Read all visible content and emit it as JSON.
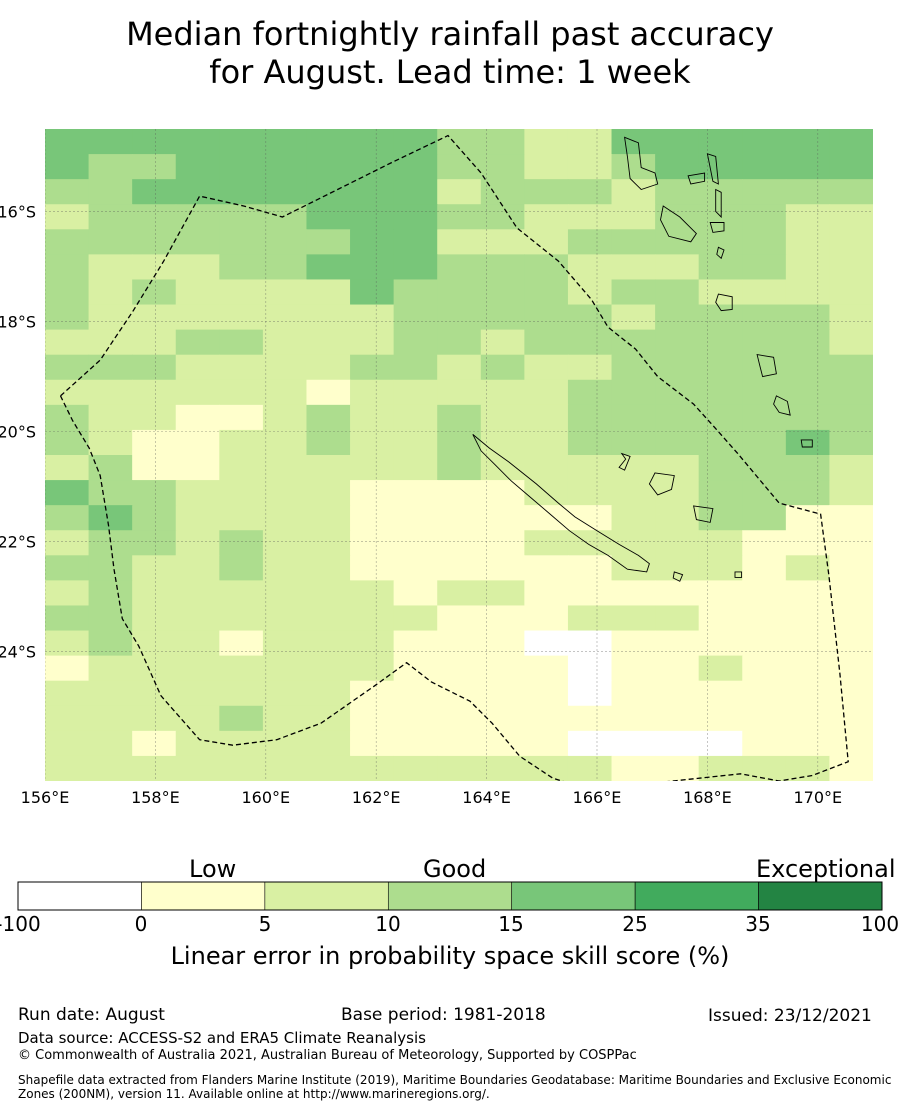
{
  "title": {
    "line1": "Median fortnightly rainfall past accuracy",
    "line2": "for August. Lead time: 1 week"
  },
  "map": {
    "lon_ticks": [
      "156°E",
      "158°E",
      "160°E",
      "162°E",
      "164°E",
      "166°E",
      "168°E",
      "170°E"
    ],
    "lat_ticks": [
      "16°S",
      "18°S",
      "20°S",
      "22°S",
      "24°S"
    ],
    "extent": {
      "lon_min": 156,
      "lon_max": 171.0,
      "lat_top": -14.5,
      "lat_bottom": -26.35
    },
    "cell_size_deg": 0.833,
    "skill_classes": [
      {
        "code": 0,
        "range": "-100 to 0",
        "color": "#ffffff"
      },
      {
        "code": 1,
        "range": "0 to 5",
        "color": "#ffffcc"
      },
      {
        "code": 2,
        "range": "5 to 10",
        "color": "#d9f0a3"
      },
      {
        "code": 3,
        "range": "10 to 15",
        "color": "#addd8e"
      },
      {
        "code": 4,
        "range": "15 to 25",
        "color": "#78c679"
      },
      {
        "code": 5,
        "range": "25 to 35",
        "color": "#41ab5d"
      },
      {
        "code": 6,
        "range": "35 to 100",
        "color": "#238443"
      }
    ],
    "grid_rows": [
      "4444444443322444444",
      "4334444443322344444",
      "3344444442333233333",
      "2333334443322233322",
      "3333333442223333322",
      "3222334443332223322",
      "3232222433332332222",
      "3222222233333233332",
      "2223322233233333332",
      "3332222332322333333",
      "2222221222223333333",
      "3221123223223333333",
      "3211223223223333343",
      "2311222223222223332",
      "4332222111122223332",
      "3432222111111223311",
      "2332322111122222111",
      "3322322111111222121",
      "2322222212211111111",
      "3322222221112221111",
      "2322122211100111111",
      "1222222211110112111",
      "2222222111110111111",
      "2222322111111111111",
      "2212222111110000111",
      "2222222222222112221"
    ],
    "eez_boundary": [
      [
        156.28,
        -19.35
      ],
      [
        157.0,
        -18.7
      ],
      [
        157.6,
        -17.8
      ],
      [
        158.15,
        -16.9
      ],
      [
        158.8,
        -15.72
      ],
      [
        159.6,
        -15.9
      ],
      [
        160.3,
        -16.1
      ],
      [
        161.3,
        -15.6
      ],
      [
        162.3,
        -15.1
      ],
      [
        163.3,
        -14.62
      ],
      [
        163.9,
        -15.3
      ],
      [
        164.55,
        -16.3
      ],
      [
        165.3,
        -16.9
      ],
      [
        165.9,
        -17.6
      ],
      [
        166.2,
        -18.1
      ],
      [
        166.7,
        -18.5
      ],
      [
        167.1,
        -19.0
      ],
      [
        167.75,
        -19.5
      ],
      [
        168.2,
        -20.0
      ],
      [
        168.55,
        -20.4
      ],
      [
        169.3,
        -21.3
      ],
      [
        170.05,
        -21.5
      ],
      [
        170.2,
        -22.6
      ],
      [
        170.4,
        -24.4
      ],
      [
        170.55,
        -26.0
      ],
      [
        169.9,
        -26.25
      ],
      [
        169.3,
        -26.35
      ],
      [
        168.6,
        -26.22
      ],
      [
        166.9,
        -26.4
      ],
      [
        165.9,
        -26.52
      ],
      [
        165.2,
        -26.3
      ],
      [
        164.6,
        -25.9
      ],
      [
        164.1,
        -25.3
      ],
      [
        163.7,
        -24.9
      ],
      [
        163.0,
        -24.55
      ],
      [
        162.55,
        -24.2
      ],
      [
        162.0,
        -24.6
      ],
      [
        161.0,
        -25.3
      ],
      [
        160.2,
        -25.6
      ],
      [
        159.4,
        -25.7
      ],
      [
        158.8,
        -25.6
      ],
      [
        158.1,
        -24.8
      ],
      [
        157.7,
        -23.9
      ],
      [
        157.4,
        -23.4
      ],
      [
        157.25,
        -22.5
      ],
      [
        157.15,
        -21.7
      ],
      [
        157.0,
        -20.8
      ],
      [
        156.8,
        -20.3
      ],
      [
        156.5,
        -19.8
      ],
      [
        156.28,
        -19.35
      ]
    ],
    "land": [
      {
        "name": "New Caledonia",
        "poly": [
          [
            163.75,
            -20.05
          ],
          [
            164.05,
            -20.3
          ],
          [
            164.4,
            -20.55
          ],
          [
            164.9,
            -20.95
          ],
          [
            165.3,
            -21.3
          ],
          [
            165.6,
            -21.55
          ],
          [
            166.0,
            -21.8
          ],
          [
            166.4,
            -22.05
          ],
          [
            166.75,
            -22.25
          ],
          [
            166.95,
            -22.4
          ],
          [
            166.9,
            -22.55
          ],
          [
            166.55,
            -22.5
          ],
          [
            166.2,
            -22.25
          ],
          [
            165.85,
            -22.05
          ],
          [
            165.5,
            -21.8
          ],
          [
            165.15,
            -21.5
          ],
          [
            164.8,
            -21.2
          ],
          [
            164.45,
            -20.9
          ],
          [
            164.15,
            -20.6
          ],
          [
            163.9,
            -20.35
          ]
        ]
      },
      {
        "name": "Ile des Pins",
        "poly": [
          [
            167.4,
            -22.55
          ],
          [
            167.55,
            -22.6
          ],
          [
            167.5,
            -22.72
          ],
          [
            167.38,
            -22.66
          ]
        ]
      },
      {
        "name": "Ouvea",
        "poly": [
          [
            166.45,
            -20.4
          ],
          [
            166.6,
            -20.45
          ],
          [
            166.5,
            -20.7
          ],
          [
            166.4,
            -20.65
          ],
          [
            166.52,
            -20.5
          ]
        ]
      },
      {
        "name": "Lifou",
        "poly": [
          [
            167.05,
            -20.75
          ],
          [
            167.4,
            -20.8
          ],
          [
            167.35,
            -21.05
          ],
          [
            167.1,
            -21.15
          ],
          [
            166.95,
            -20.95
          ]
        ]
      },
      {
        "name": "Mare",
        "poly": [
          [
            167.75,
            -21.35
          ],
          [
            168.1,
            -21.4
          ],
          [
            168.05,
            -21.65
          ],
          [
            167.8,
            -21.6
          ]
        ]
      },
      {
        "name": "Espiritu Santo",
        "poly": [
          [
            166.5,
            -14.65
          ],
          [
            166.75,
            -14.75
          ],
          [
            166.8,
            -15.2
          ],
          [
            167.05,
            -15.3
          ],
          [
            167.1,
            -15.5
          ],
          [
            166.8,
            -15.6
          ],
          [
            166.6,
            -15.4
          ],
          [
            166.55,
            -15.0
          ]
        ]
      },
      {
        "name": "Malekula",
        "poly": [
          [
            167.2,
            -15.9
          ],
          [
            167.5,
            -16.1
          ],
          [
            167.8,
            -16.4
          ],
          [
            167.7,
            -16.55
          ],
          [
            167.3,
            -16.45
          ],
          [
            167.15,
            -16.15
          ]
        ]
      },
      {
        "name": "Maewo",
        "poly": [
          [
            168.0,
            -14.95
          ],
          [
            168.15,
            -15.0
          ],
          [
            168.2,
            -15.5
          ],
          [
            168.1,
            -15.45
          ]
        ]
      },
      {
        "name": "Pentecost",
        "poly": [
          [
            168.15,
            -15.6
          ],
          [
            168.25,
            -15.65
          ],
          [
            168.25,
            -16.1
          ],
          [
            168.15,
            -16.0
          ]
        ]
      },
      {
        "name": "Ambae",
        "poly": [
          [
            167.65,
            -15.35
          ],
          [
            167.95,
            -15.3
          ],
          [
            167.95,
            -15.45
          ],
          [
            167.7,
            -15.5
          ]
        ]
      },
      {
        "name": "Ambrym",
        "poly": [
          [
            168.05,
            -16.2
          ],
          [
            168.3,
            -16.2
          ],
          [
            168.3,
            -16.35
          ],
          [
            168.1,
            -16.38
          ]
        ]
      },
      {
        "name": "Epi",
        "poly": [
          [
            168.2,
            -16.65
          ],
          [
            168.3,
            -16.7
          ],
          [
            168.25,
            -16.85
          ],
          [
            168.17,
            -16.78
          ]
        ]
      },
      {
        "name": "Efate",
        "poly": [
          [
            168.2,
            -17.5
          ],
          [
            168.45,
            -17.55
          ],
          [
            168.45,
            -17.78
          ],
          [
            168.25,
            -17.8
          ],
          [
            168.15,
            -17.65
          ]
        ]
      },
      {
        "name": "Erromango",
        "poly": [
          [
            168.9,
            -18.6
          ],
          [
            169.2,
            -18.65
          ],
          [
            169.25,
            -18.95
          ],
          [
            169.0,
            -19.0
          ],
          [
            168.95,
            -18.8
          ]
        ]
      },
      {
        "name": "Tanna",
        "poly": [
          [
            169.25,
            -19.35
          ],
          [
            169.45,
            -19.45
          ],
          [
            169.5,
            -19.7
          ],
          [
            169.3,
            -19.65
          ],
          [
            169.2,
            -19.5
          ]
        ]
      },
      {
        "name": "Aneityum",
        "poly": [
          [
            169.7,
            -20.15
          ],
          [
            169.9,
            -20.15
          ],
          [
            169.9,
            -20.28
          ],
          [
            169.72,
            -20.28
          ]
        ]
      },
      {
        "name": "Walpole",
        "poly": [
          [
            168.5,
            -22.55
          ],
          [
            168.62,
            -22.55
          ],
          [
            168.62,
            -22.65
          ],
          [
            168.5,
            -22.65
          ]
        ]
      }
    ]
  },
  "colorbar": {
    "words": [
      "Low",
      "Good",
      "Exceptional"
    ],
    "boundaries": [
      "-100",
      "0",
      "5",
      "10",
      "15",
      "25",
      "35",
      "100"
    ],
    "colors": [
      "#ffffff",
      "#ffffcc",
      "#d9f0a3",
      "#addd8e",
      "#78c679",
      "#41ab5d",
      "#238443"
    ],
    "title": "Linear error in probability space skill score (%)"
  },
  "footer": {
    "run_date": "Run date: August",
    "base_period": "Base period: 1981-2018",
    "issued": "Issued: 23/12/2021",
    "data_source": "Data source: ACCESS-S2 and ERA5 Climate Reanalysis",
    "copyright": "© Commonwealth of Australia 2021, Australian Bureau of Meteorology, Supported by COSPPac",
    "shapefile": "Shapefile data extracted from Flanders Marine Institute (2019), Maritime Boundaries Geodatabase: Maritime Boundaries and Exclusive Economic Zones (200NM), version 11. Available online at http://www.marineregions.org/."
  }
}
